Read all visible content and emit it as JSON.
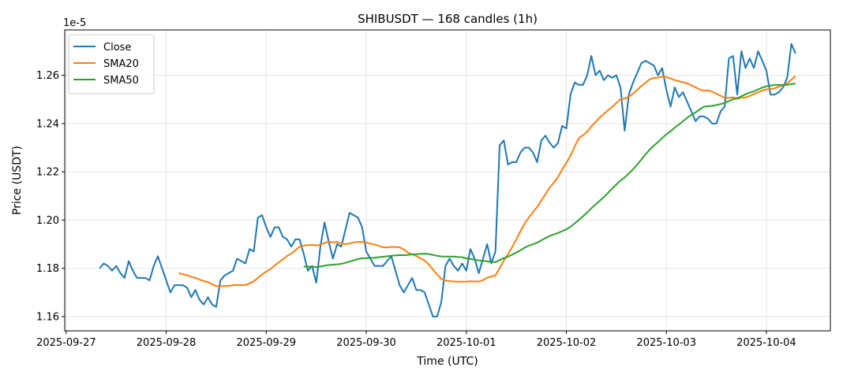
{
  "chart_data": {
    "type": "line",
    "title": "SHIBUSDT — 168 candles (1h)",
    "xlabel": "Time (UTC)",
    "ylabel": "Price (USDT)",
    "y_offset_label": "1e-5",
    "y_scale": 1e-05,
    "start": "2025-09-27 08:00",
    "interval_hours": 1,
    "ylim": [
      1.1541,
      1.2788
    ],
    "yticks": [
      1.16,
      1.18,
      1.2,
      1.22,
      1.24,
      1.26
    ],
    "ytick_labels": [
      "1.16",
      "1.18",
      "1.20",
      "1.22",
      "1.24",
      "1.26"
    ],
    "xticks_hours_from_start": [
      -8,
      16,
      40,
      64,
      88,
      112,
      136,
      160
    ],
    "xtick_labels": [
      "2025-09-27",
      "2025-09-28",
      "2025-09-29",
      "2025-09-30",
      "2025-10-01",
      "2025-10-02",
      "2025-10-03",
      "2025-10-04"
    ],
    "grid": true,
    "legend_position": "top-left",
    "series": [
      {
        "name": "Close",
        "color": "#1f77b4",
        "values": [
          1.18,
          1.182,
          1.181,
          1.179,
          1.181,
          1.178,
          1.176,
          1.183,
          1.179,
          1.176,
          1.176,
          1.176,
          1.175,
          1.181,
          1.185,
          1.18,
          1.175,
          1.17,
          1.173,
          1.173,
          1.173,
          1.172,
          1.168,
          1.171,
          1.167,
          1.165,
          1.168,
          1.165,
          1.164,
          1.175,
          1.177,
          1.178,
          1.179,
          1.184,
          1.183,
          1.182,
          1.188,
          1.187,
          1.201,
          1.202,
          1.197,
          1.193,
          1.197,
          1.197,
          1.193,
          1.192,
          1.189,
          1.192,
          1.192,
          1.186,
          1.179,
          1.181,
          1.174,
          1.189,
          1.199,
          1.191,
          1.184,
          1.19,
          1.189,
          1.196,
          1.203,
          1.202,
          1.201,
          1.197,
          1.187,
          1.184,
          1.181,
          1.181,
          1.181,
          1.183,
          1.185,
          1.179,
          1.173,
          1.17,
          1.173,
          1.176,
          1.171,
          1.171,
          1.17,
          1.165,
          1.16,
          1.16,
          1.166,
          1.181,
          1.184,
          1.181,
          1.179,
          1.182,
          1.179,
          1.188,
          1.184,
          1.178,
          1.184,
          1.19,
          1.182,
          1.187,
          1.231,
          1.233,
          1.223,
          1.224,
          1.224,
          1.228,
          1.23,
          1.23,
          1.228,
          1.224,
          1.233,
          1.235,
          1.232,
          1.23,
          1.232,
          1.239,
          1.238,
          1.252,
          1.257,
          1.256,
          1.256,
          1.26,
          1.268,
          1.26,
          1.262,
          1.258,
          1.26,
          1.259,
          1.26,
          1.255,
          1.237,
          1.252,
          1.257,
          1.261,
          1.265,
          1.266,
          1.265,
          1.264,
          1.26,
          1.263,
          1.254,
          1.247,
          1.255,
          1.251,
          1.253,
          1.249,
          1.245,
          1.241,
          1.243,
          1.243,
          1.242,
          1.24,
          1.24,
          1.245,
          1.247,
          1.267,
          1.268,
          1.252,
          1.27,
          1.263,
          1.267,
          1.263,
          1.27,
          1.266,
          1.262,
          1.252,
          1.252,
          1.253,
          1.255,
          1.259,
          1.273,
          1.269
        ]
      },
      {
        "name": "SMA20",
        "color": "#ff7f0e",
        "window": 20
      },
      {
        "name": "SMA50",
        "color": "#2ca02c",
        "window": 50
      }
    ]
  }
}
